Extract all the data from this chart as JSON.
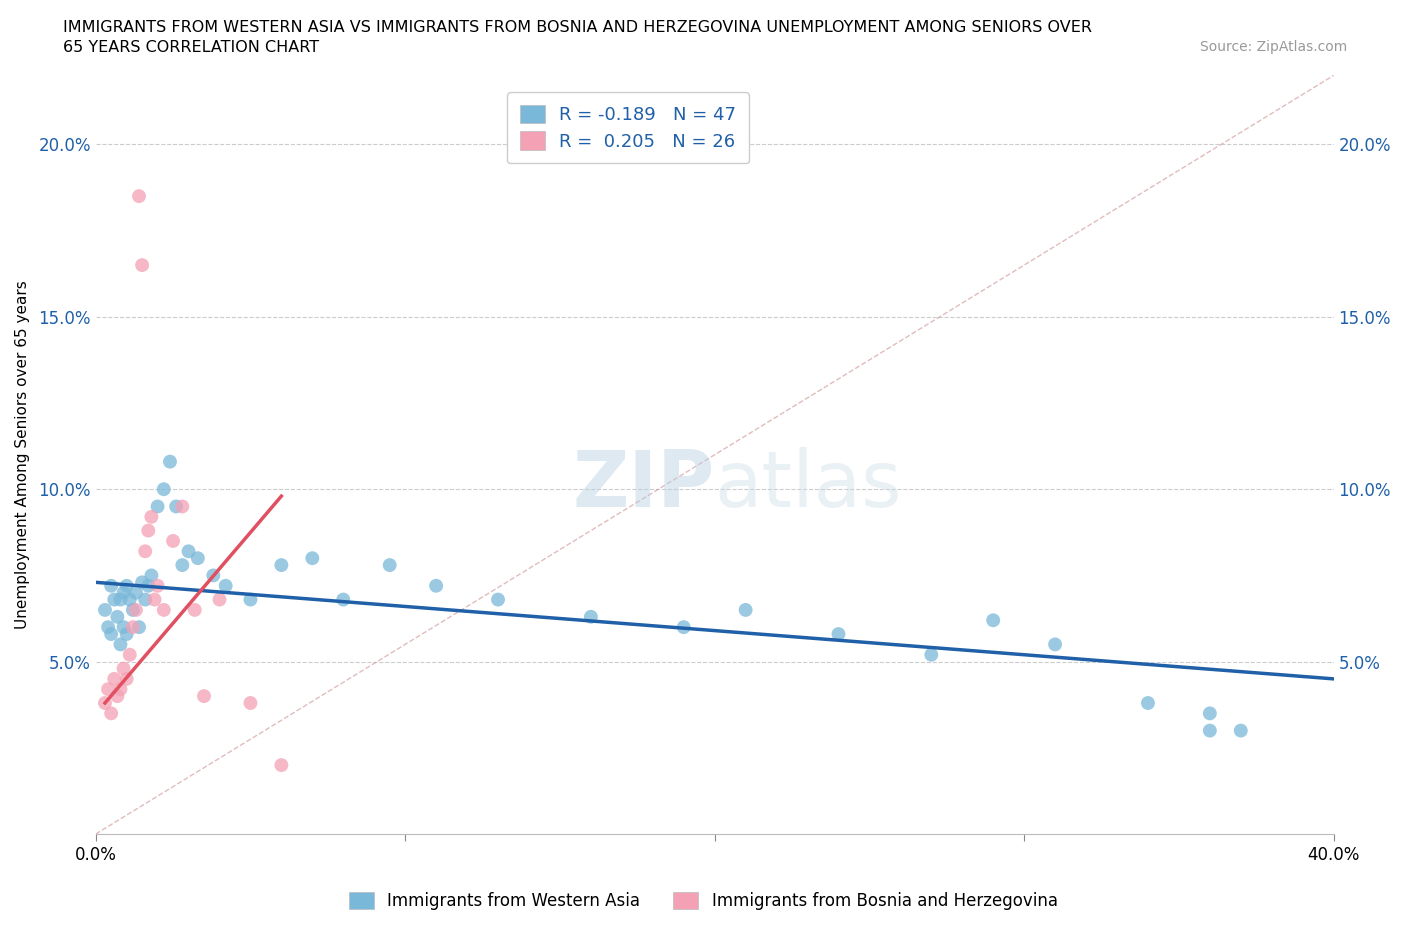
{
  "title_line1": "IMMIGRANTS FROM WESTERN ASIA VS IMMIGRANTS FROM BOSNIA AND HERZEGOVINA UNEMPLOYMENT AMONG SENIORS OVER",
  "title_line2": "65 YEARS CORRELATION CHART",
  "source_text": "Source: ZipAtlas.com",
  "ylabel": "Unemployment Among Seniors over 65 years",
  "xmin": 0.0,
  "xmax": 0.4,
  "ymin": 0.0,
  "ymax": 0.22,
  "yticks": [
    0.05,
    0.1,
    0.15,
    0.2
  ],
  "ytick_labels": [
    "5.0%",
    "10.0%",
    "15.0%",
    "20.0%"
  ],
  "xticks": [
    0.0,
    0.1,
    0.2,
    0.3,
    0.4
  ],
  "color_blue": "#7ab8d9",
  "color_pink": "#f4a0b5",
  "color_blue_line": "#2060a8",
  "color_pink_line": "#e05060",
  "watermark_zip": "ZIP",
  "watermark_atlas": "atlas",
  "series1_label": "Immigrants from Western Asia",
  "series2_label": "Immigrants from Bosnia and Herzegovina",
  "blue_x": [
    0.003,
    0.004,
    0.005,
    0.005,
    0.006,
    0.007,
    0.008,
    0.008,
    0.009,
    0.009,
    0.01,
    0.01,
    0.011,
    0.012,
    0.013,
    0.014,
    0.015,
    0.016,
    0.017,
    0.018,
    0.02,
    0.022,
    0.024,
    0.026,
    0.028,
    0.03,
    0.033,
    0.038,
    0.042,
    0.05,
    0.06,
    0.07,
    0.08,
    0.095,
    0.11,
    0.13,
    0.16,
    0.19,
    0.21,
    0.24,
    0.27,
    0.29,
    0.31,
    0.34,
    0.36,
    0.36,
    0.37
  ],
  "blue_y": [
    0.065,
    0.06,
    0.058,
    0.072,
    0.068,
    0.063,
    0.055,
    0.068,
    0.06,
    0.07,
    0.058,
    0.072,
    0.068,
    0.065,
    0.07,
    0.06,
    0.073,
    0.068,
    0.072,
    0.075,
    0.095,
    0.1,
    0.108,
    0.095,
    0.078,
    0.082,
    0.08,
    0.075,
    0.072,
    0.068,
    0.078,
    0.08,
    0.068,
    0.078,
    0.072,
    0.068,
    0.063,
    0.06,
    0.065,
    0.058,
    0.052,
    0.062,
    0.055,
    0.038,
    0.03,
    0.035,
    0.03
  ],
  "pink_x": [
    0.003,
    0.004,
    0.005,
    0.006,
    0.007,
    0.008,
    0.009,
    0.01,
    0.011,
    0.012,
    0.013,
    0.014,
    0.015,
    0.016,
    0.017,
    0.018,
    0.019,
    0.02,
    0.022,
    0.025,
    0.028,
    0.032,
    0.035,
    0.04,
    0.05,
    0.06
  ],
  "pink_y": [
    0.038,
    0.042,
    0.035,
    0.045,
    0.04,
    0.042,
    0.048,
    0.045,
    0.052,
    0.06,
    0.065,
    0.185,
    0.165,
    0.082,
    0.088,
    0.092,
    0.068,
    0.072,
    0.065,
    0.085,
    0.095,
    0.065,
    0.04,
    0.068,
    0.038,
    0.02
  ],
  "blue_trend_x": [
    0.0,
    0.4
  ],
  "blue_trend_y": [
    0.073,
    0.045
  ],
  "pink_trend_x": [
    0.003,
    0.06
  ],
  "pink_trend_y": [
    0.038,
    0.098
  ]
}
